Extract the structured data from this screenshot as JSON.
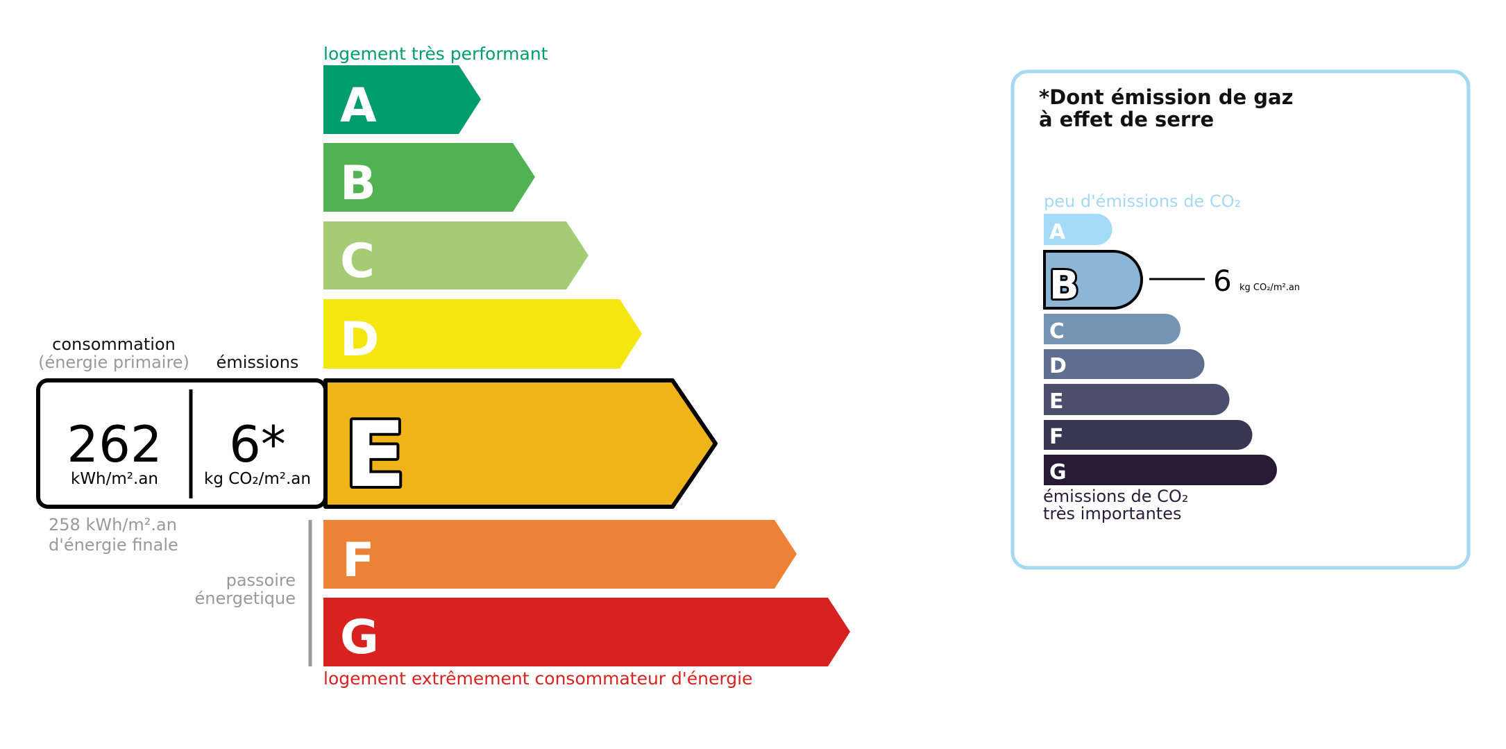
{
  "energy_scale": {
    "top_label": "logement très performant",
    "bottom_label": "logement extrêmement consommateur d'énergie",
    "classes": [
      {
        "letter": "A",
        "color": "#009c6d"
      },
      {
        "letter": "B",
        "color": "#52b153"
      },
      {
        "letter": "C",
        "color": "#a5cc74"
      },
      {
        "letter": "D",
        "color": "#f4e70f"
      },
      {
        "letter": "E",
        "color": "#f0b41a"
      },
      {
        "letter": "F",
        "color": "#eb8235"
      },
      {
        "letter": "G",
        "color": "#d7221f"
      }
    ],
    "top_color": "#009c6d",
    "bottom_color": "#d7221f",
    "current_class": "E",
    "consumption_label": "consommation",
    "consumption_sublabel": "(énergie primaire)",
    "emissions_label": "émissions",
    "consumption_value": "262",
    "consumption_unit": "kWh/m².an",
    "emissions_value": "6*",
    "emissions_unit": "kg CO₂/m².an",
    "final_energy_value": "258 kWh/m².an",
    "final_energy_label": "d'énergie finale",
    "passoire_line1": "passoire",
    "passoire_line2": "énergetique"
  },
  "ghg_panel": {
    "title_line1": "*Dont émission de gaz",
    "title_line2": "à effet de serre",
    "top_label": "peu d'émissions de CO₂",
    "bottom_label_line1": "émissions de CO₂",
    "bottom_label_line2": "très importantes",
    "classes": [
      {
        "letter": "A",
        "color": "#a4dbf7"
      },
      {
        "letter": "B",
        "color": "#8db5d5"
      },
      {
        "letter": "C",
        "color": "#7593b3"
      },
      {
        "letter": "D",
        "color": "#5f6d8f"
      },
      {
        "letter": "E",
        "color": "#4c4e6e"
      },
      {
        "letter": "F",
        "color": "#383651"
      },
      {
        "letter": "G",
        "color": "#281a34"
      }
    ],
    "current_class": "B",
    "value": "6",
    "unit": "kg CO₂/m².an",
    "border_color": "#a5d9f3"
  }
}
